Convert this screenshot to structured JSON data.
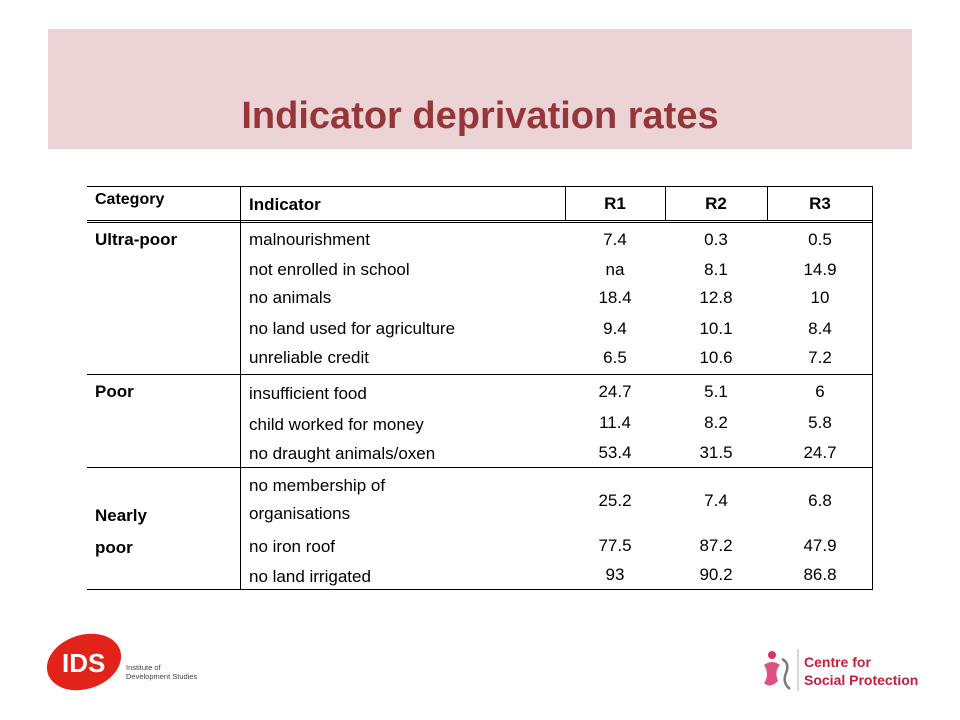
{
  "slide": {
    "title": "Indicator deprivation rates"
  },
  "table": {
    "headers": [
      "Category",
      "Indicator",
      "R1",
      "R2",
      "R3"
    ],
    "groups": [
      {
        "category": "Ultra-poor",
        "rows": [
          {
            "indicator": "malnourishment",
            "r1": "7.4",
            "r2": "0.3",
            "r3": "0.5"
          },
          {
            "indicator": "not enrolled in school",
            "r1": "na",
            "r2": "8.1",
            "r3": "14.9"
          },
          {
            "indicator": "no animals",
            "r1": "18.4",
            "r2": "12.8",
            "r3": "10"
          },
          {
            "indicator": "no land used for agriculture",
            "r1": "9.4",
            "r2": "10.1",
            "r3": "8.4"
          },
          {
            "indicator": "unreliable credit",
            "r1": "6.5",
            "r2": "10.6",
            "r3": "7.2"
          }
        ]
      },
      {
        "category": "Poor",
        "rows": [
          {
            "indicator": "insufficient food",
            "r1": "24.7",
            "r2": "5.1",
            "r3": "6"
          },
          {
            "indicator": "child worked for money",
            "r1": "11.4",
            "r2": "8.2",
            "r3": "5.8"
          },
          {
            "indicator": "no draught animals/oxen",
            "r1": "53.4",
            "r2": "31.5",
            "r3": "24.7"
          }
        ]
      },
      {
        "category_line1": "Nearly",
        "category_line2": "poor",
        "rows": [
          {
            "indicator_line1": "no membership of",
            "indicator_line2": "organisations",
            "r1": "25.2",
            "r2": "7.4",
            "r3": "6.8"
          },
          {
            "indicator": "no iron roof",
            "r1": "77.5",
            "r2": "87.2",
            "r3": "47.9"
          },
          {
            "indicator": "no land irrigated",
            "r1": "93",
            "r2": "90.2",
            "r3": "86.8"
          }
        ]
      }
    ]
  },
  "logos": {
    "ids_mark": "IDS",
    "ids_line1": "Institute of",
    "ids_line2": "Development Studies",
    "csp_line1": "Centre for",
    "csp_line2": "Social Protection"
  },
  "colors": {
    "title": "#973639",
    "band": "#ecd3d6",
    "ids_red": "#e2231a",
    "csp_pink": "#d6336c"
  }
}
